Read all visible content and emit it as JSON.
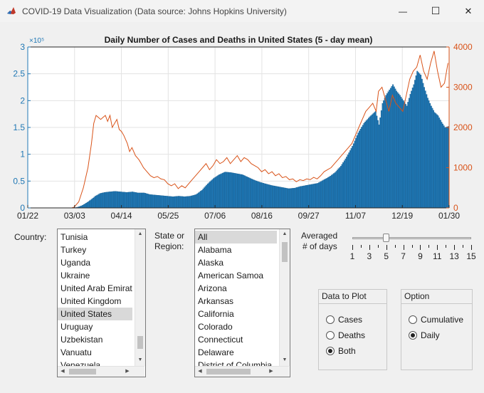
{
  "window": {
    "title": "COVID-19 Data Visualization (Data source: Johns Hopkins University)",
    "minimize_glyph": "—",
    "maximize_glyph": "☐",
    "close_glyph": "✕"
  },
  "chart_data": {
    "type": "bar",
    "title": "Daily Number of Cases and Deaths in United States  (5 - day mean)",
    "x_ticks": [
      "01/22",
      "03/03",
      "04/14",
      "05/25",
      "07/06",
      "08/16",
      "09/27",
      "11/07",
      "12/19",
      "01/30"
    ],
    "left_axis": {
      "ticks": [
        "0",
        "0.5",
        "1",
        "1.5",
        "2",
        "2.5",
        "3"
      ],
      "multiplier": "×10⁵",
      "ylim": [
        0,
        300000
      ],
      "color": "#1f77b4"
    },
    "right_axis": {
      "ticks": [
        "0",
        "1000",
        "2000",
        "3000",
        "4000"
      ],
      "ylim": [
        0,
        4000
      ],
      "color": "#d95319"
    },
    "grid": true,
    "series": [
      {
        "kind": "bar",
        "axis": "left",
        "points": [
          [
            0,
            0
          ],
          [
            38,
            0
          ],
          [
            42,
            1000
          ],
          [
            46,
            4000
          ],
          [
            50,
            9000
          ],
          [
            54,
            15000
          ],
          [
            58,
            22000
          ],
          [
            62,
            27000
          ],
          [
            66,
            29000
          ],
          [
            70,
            30000
          ],
          [
            75,
            31000
          ],
          [
            80,
            30000
          ],
          [
            85,
            29000
          ],
          [
            90,
            30000
          ],
          [
            95,
            28000
          ],
          [
            100,
            28000
          ],
          [
            105,
            25000
          ],
          [
            110,
            24000
          ],
          [
            115,
            23000
          ],
          [
            120,
            22000
          ],
          [
            125,
            21000
          ],
          [
            130,
            22000
          ],
          [
            135,
            21000
          ],
          [
            140,
            22000
          ],
          [
            145,
            25000
          ],
          [
            150,
            33000
          ],
          [
            155,
            45000
          ],
          [
            160,
            55000
          ],
          [
            165,
            62000
          ],
          [
            170,
            67000
          ],
          [
            175,
            66000
          ],
          [
            180,
            64000
          ],
          [
            185,
            62000
          ],
          [
            190,
            57000
          ],
          [
            195,
            52000
          ],
          [
            200,
            48000
          ],
          [
            205,
            45000
          ],
          [
            210,
            42000
          ],
          [
            215,
            40000
          ],
          [
            220,
            38000
          ],
          [
            225,
            36000
          ],
          [
            230,
            37000
          ],
          [
            235,
            40000
          ],
          [
            240,
            42000
          ],
          [
            245,
            44000
          ],
          [
            250,
            46000
          ],
          [
            255,
            52000
          ],
          [
            260,
            58000
          ],
          [
            265,
            66000
          ],
          [
            270,
            78000
          ],
          [
            275,
            95000
          ],
          [
            280,
            115000
          ],
          [
            285,
            140000
          ],
          [
            290,
            158000
          ],
          [
            295,
            170000
          ],
          [
            300,
            180000
          ],
          [
            303,
            155000
          ],
          [
            306,
            195000
          ],
          [
            309,
            210000
          ],
          [
            312,
            220000
          ],
          [
            315,
            230000
          ],
          [
            318,
            218000
          ],
          [
            321,
            210000
          ],
          [
            324,
            200000
          ],
          [
            327,
            190000
          ],
          [
            330,
            212000
          ],
          [
            333,
            230000
          ],
          [
            336,
            255000
          ],
          [
            339,
            248000
          ],
          [
            342,
            225000
          ],
          [
            345,
            205000
          ],
          [
            348,
            190000
          ],
          [
            351,
            178000
          ],
          [
            354,
            172000
          ],
          [
            357,
            160000
          ],
          [
            360,
            150000
          ],
          [
            363,
            152000
          ]
        ]
      },
      {
        "kind": "line",
        "axis": "right",
        "points": [
          [
            0,
            0
          ],
          [
            38,
            0
          ],
          [
            40,
            20
          ],
          [
            44,
            150
          ],
          [
            48,
            500
          ],
          [
            52,
            1000
          ],
          [
            55,
            1600
          ],
          [
            57,
            2100
          ],
          [
            59,
            2300
          ],
          [
            61,
            2250
          ],
          [
            63,
            2200
          ],
          [
            65,
            2250
          ],
          [
            67,
            2300
          ],
          [
            69,
            2150
          ],
          [
            71,
            2300
          ],
          [
            73,
            2000
          ],
          [
            75,
            2100
          ],
          [
            77,
            2200
          ],
          [
            79,
            1950
          ],
          [
            81,
            1900
          ],
          [
            83,
            1800
          ],
          [
            86,
            1600
          ],
          [
            88,
            1400
          ],
          [
            90,
            1500
          ],
          [
            93,
            1300
          ],
          [
            96,
            1200
          ],
          [
            98,
            1100
          ],
          [
            100,
            1000
          ],
          [
            103,
            900
          ],
          [
            106,
            800
          ],
          [
            109,
            750
          ],
          [
            112,
            780
          ],
          [
            115,
            720
          ],
          [
            118,
            700
          ],
          [
            121,
            600
          ],
          [
            124,
            550
          ],
          [
            127,
            600
          ],
          [
            130,
            480
          ],
          [
            133,
            550
          ],
          [
            136,
            500
          ],
          [
            139,
            600
          ],
          [
            142,
            700
          ],
          [
            145,
            800
          ],
          [
            148,
            900
          ],
          [
            151,
            1000
          ],
          [
            154,
            1100
          ],
          [
            157,
            950
          ],
          [
            160,
            1050
          ],
          [
            163,
            1200
          ],
          [
            166,
            1100
          ],
          [
            169,
            1150
          ],
          [
            172,
            1250
          ],
          [
            175,
            1100
          ],
          [
            178,
            1200
          ],
          [
            181,
            1300
          ],
          [
            184,
            1150
          ],
          [
            187,
            1250
          ],
          [
            190,
            1200
          ],
          [
            193,
            1100
          ],
          [
            196,
            1050
          ],
          [
            199,
            1000
          ],
          [
            202,
            900
          ],
          [
            205,
            950
          ],
          [
            208,
            850
          ],
          [
            211,
            900
          ],
          [
            214,
            800
          ],
          [
            217,
            850
          ],
          [
            220,
            750
          ],
          [
            223,
            780
          ],
          [
            226,
            700
          ],
          [
            229,
            720
          ],
          [
            232,
            650
          ],
          [
            235,
            700
          ],
          [
            238,
            680
          ],
          [
            241,
            720
          ],
          [
            244,
            700
          ],
          [
            247,
            760
          ],
          [
            250,
            720
          ],
          [
            253,
            800
          ],
          [
            256,
            900
          ],
          [
            259,
            950
          ],
          [
            262,
            1000
          ],
          [
            265,
            1100
          ],
          [
            268,
            1200
          ],
          [
            271,
            1300
          ],
          [
            274,
            1400
          ],
          [
            277,
            1500
          ],
          [
            280,
            1600
          ],
          [
            283,
            1800
          ],
          [
            286,
            2000
          ],
          [
            289,
            2200
          ],
          [
            292,
            2400
          ],
          [
            295,
            2500
          ],
          [
            298,
            2600
          ],
          [
            301,
            2400
          ],
          [
            303,
            2900
          ],
          [
            306,
            3000
          ],
          [
            309,
            2700
          ],
          [
            312,
            2400
          ],
          [
            315,
            2800
          ],
          [
            318,
            2600
          ],
          [
            321,
            2500
          ],
          [
            324,
            2400
          ],
          [
            327,
            2800
          ],
          [
            330,
            3200
          ],
          [
            333,
            3400
          ],
          [
            336,
            3500
          ],
          [
            339,
            3800
          ],
          [
            342,
            3400
          ],
          [
            345,
            3200
          ],
          [
            348,
            3600
          ],
          [
            351,
            3900
          ],
          [
            354,
            3400
          ],
          [
            357,
            3000
          ],
          [
            360,
            3100
          ],
          [
            363,
            3600
          ]
        ]
      }
    ]
  },
  "controls": {
    "country_label": "Country:",
    "country_items": [
      "Tunisia",
      "Turkey",
      "Uganda",
      "Ukraine",
      "United Arab Emirat",
      "United Kingdom",
      "United States",
      "Uruguay",
      "Uzbekistan",
      "Vanuatu",
      "Venezuela"
    ],
    "country_selected_index": 6,
    "state_label_line1": "State or",
    "state_label_line2": "Region:",
    "state_items": [
      "All",
      "Alabama",
      "Alaska",
      "American Samoa",
      "Arizona",
      "Arkansas",
      "California",
      "Colorado",
      "Connecticut",
      "Delaware",
      "District of Columbia"
    ],
    "state_selected_index": 0,
    "averaged_label_line1": "Averaged",
    "averaged_label_line2": "# of days",
    "slider_value": 5,
    "slider_min": 1,
    "slider_max": 15,
    "slider_tick_labels": [
      "1",
      "3",
      "5",
      "7",
      "9",
      "11",
      "13",
      "15"
    ],
    "data_panel_title": "Data to Plot",
    "data_options": [
      "Cases",
      "Deaths",
      "Both"
    ],
    "data_selected_index": 2,
    "option_panel_title": "Option",
    "option_options": [
      "Cumulative",
      "Daily"
    ],
    "option_selected_index": 1
  }
}
